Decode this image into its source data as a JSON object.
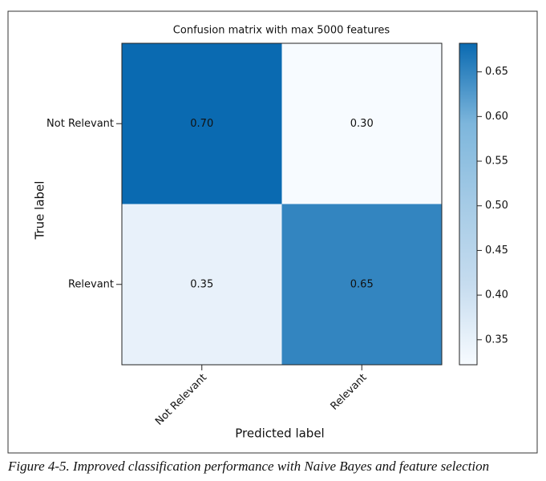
{
  "chart_data": {
    "type": "heatmap",
    "title": "Confusion matrix with max 5000 features",
    "x_label": "Predicted label",
    "y_label": "True label",
    "x_categories": [
      "Not Relevant",
      "Relevant"
    ],
    "y_categories": [
      "Not Relevant",
      "Relevant"
    ],
    "values": [
      [
        0.7,
        0.3
      ],
      [
        0.35,
        0.65
      ]
    ],
    "value_labels": [
      [
        "0.70",
        "0.30"
      ],
      [
        "0.35",
        "0.65"
      ]
    ],
    "colormap": [
      "#f7fbff",
      "#c6dcef",
      "#a5cbe6",
      "#7db6dc",
      "#0a6ab1"
    ],
    "clim": [
      0.322,
      0.682
    ],
    "cticks": [
      0.35,
      {
        "value": 0.4,
        "label": "0.40"
      },
      0.45,
      {
        "value": 0.5,
        "label": "0.50"
      },
      0.55,
      {
        "value": 0.6,
        "label": "0.60"
      },
      0.65
    ],
    "caption": "Figure 4-5. Improved classification performance with Naive Bayes and feature selection"
  }
}
